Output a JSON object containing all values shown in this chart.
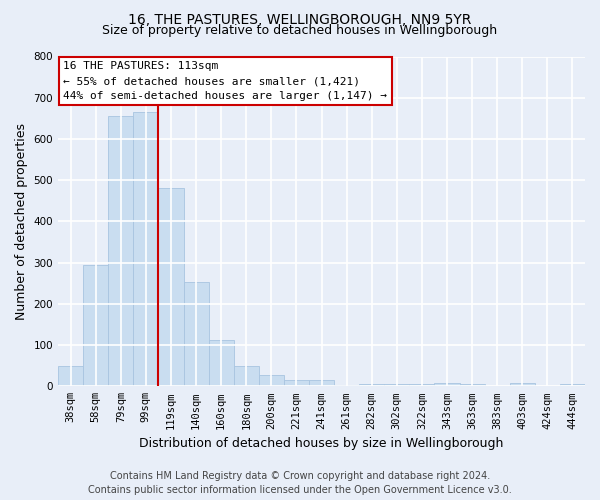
{
  "title": "16, THE PASTURES, WELLINGBOROUGH, NN9 5YR",
  "subtitle": "Size of property relative to detached houses in Wellingborough",
  "xlabel": "Distribution of detached houses by size in Wellingborough",
  "ylabel": "Number of detached properties",
  "bar_labels": [
    "38sqm",
    "58sqm",
    "79sqm",
    "99sqm",
    "119sqm",
    "140sqm",
    "160sqm",
    "180sqm",
    "200sqm",
    "221sqm",
    "241sqm",
    "261sqm",
    "282sqm",
    "302sqm",
    "322sqm",
    "343sqm",
    "363sqm",
    "383sqm",
    "403sqm",
    "424sqm",
    "444sqm"
  ],
  "bar_values": [
    50,
    295,
    655,
    665,
    480,
    253,
    113,
    50,
    28,
    16,
    16,
    4,
    5,
    5,
    5,
    8,
    5,
    0,
    8,
    0,
    6
  ],
  "bar_color": "#c9ddf0",
  "bar_edge_color": "#a8c4e0",
  "vline_x": 4,
  "vline_color": "#cc0000",
  "annotation_title": "16 THE PASTURES: 113sqm",
  "annotation_line1": "← 55% of detached houses are smaller (1,421)",
  "annotation_line2": "44% of semi-detached houses are larger (1,147) →",
  "annotation_box_facecolor": "#ffffff",
  "annotation_box_edgecolor": "#cc0000",
  "ylim": [
    0,
    800
  ],
  "yticks": [
    0,
    100,
    200,
    300,
    400,
    500,
    600,
    700,
    800
  ],
  "footer_line1": "Contains HM Land Registry data © Crown copyright and database right 2024.",
  "footer_line2": "Contains public sector information licensed under the Open Government Licence v3.0.",
  "bg_color": "#e8eef8",
  "plot_bg_color": "#e8eef8",
  "grid_color": "#ffffff",
  "title_fontsize": 10,
  "subtitle_fontsize": 9,
  "axis_label_fontsize": 9,
  "tick_fontsize": 7.5,
  "annotation_fontsize": 8,
  "footer_fontsize": 7
}
